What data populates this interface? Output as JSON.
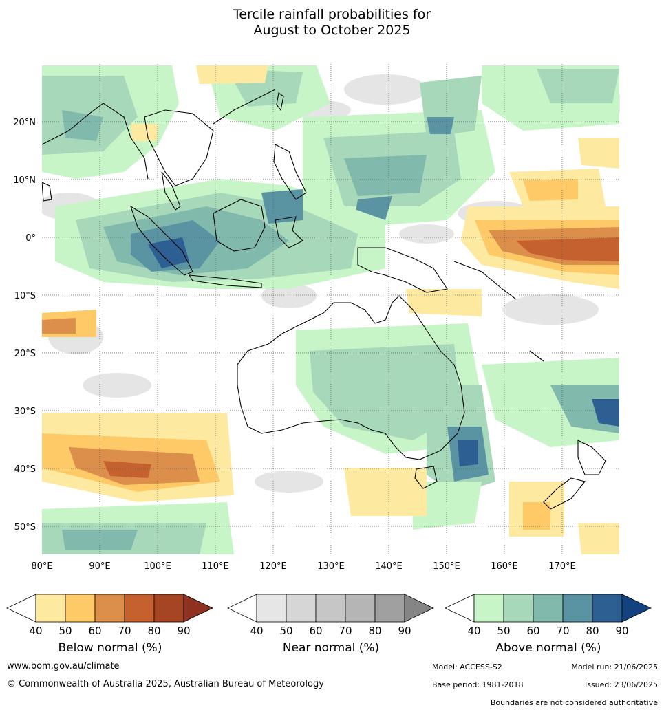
{
  "title": {
    "line1": "Tercile rainfall probabilities for",
    "line2": "August to October 2025"
  },
  "map": {
    "lon_labels": [
      "80°E",
      "90°E",
      "100°E",
      "110°E",
      "120°E",
      "130°E",
      "140°E",
      "150°E",
      "160°E",
      "170°E"
    ],
    "lat_labels": [
      "20°N",
      "10°N",
      "0°",
      "10°S",
      "20°S",
      "30°S",
      "40°S",
      "50°S"
    ],
    "grid_lines": "dotted",
    "colors": {
      "land_outline": "#000000",
      "border": "#888888",
      "near_normal_fill": "#e5e5e5",
      "above_40": "#c8f5c8",
      "above_50": "#a6d8b9",
      "above_60": "#82b9ad",
      "above_70": "#5a93a2",
      "above_80": "#2e5f93",
      "below_40": "#fde9a0",
      "below_50": "#fdca67",
      "below_60": "#dc8f4b",
      "below_70": "#c5612f",
      "below_80": "#a64523"
    }
  },
  "colorbars": [
    {
      "name": "below",
      "title": "Below normal (%)",
      "ticks": [
        "40",
        "50",
        "60",
        "70",
        "80",
        "90"
      ],
      "colors": [
        "#ffffff",
        "#fde9a0",
        "#fdca67",
        "#dc8f4b",
        "#c5612f",
        "#a64523",
        "#8e3120"
      ]
    },
    {
      "name": "near",
      "title": "Near normal (%)",
      "ticks": [
        "40",
        "50",
        "60",
        "70",
        "80",
        "90"
      ],
      "colors": [
        "#ffffff",
        "#e6e6e6",
        "#d6d6d6",
        "#c6c6c6",
        "#b5b5b5",
        "#a0a0a0",
        "#858585"
      ]
    },
    {
      "name": "above",
      "title": "Above normal (%)",
      "ticks": [
        "40",
        "50",
        "60",
        "70",
        "80",
        "90"
      ],
      "colors": [
        "#ffffff",
        "#c8f5c8",
        "#a6d8b9",
        "#82b9ad",
        "#5a93a2",
        "#2e5f93",
        "#12437f"
      ]
    }
  ],
  "footer": {
    "website": "www.bom.gov.au/climate",
    "copyright": "© Commonwealth of Australia 2025, Australian Bureau of Meteorology",
    "model": "Model: ACCESS-S2",
    "model_run": "Model run: 21/06/2025",
    "base_period": "Base period: 1981-2018",
    "issued": "Issued: 23/06/2025",
    "disclaimer": "Boundaries are not considered authoritative"
  }
}
